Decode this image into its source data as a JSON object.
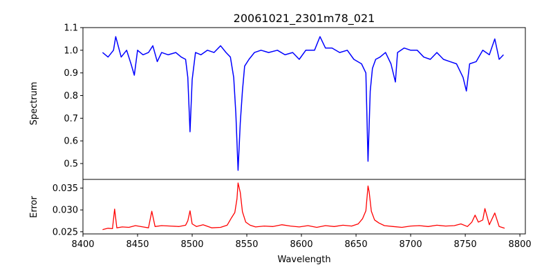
{
  "chart_data": [
    {
      "type": "line",
      "panel": "top",
      "title": "20061021_2301m78_021",
      "ylabel": "Spectrum",
      "xlabel": "",
      "xlim": [
        8400,
        8805
      ],
      "ylim": [
        0.43,
        1.1
      ],
      "yticks": [
        0.5,
        0.6,
        0.7,
        0.8,
        0.9,
        1.0,
        1.1
      ],
      "ytick_labels": [
        "0.5",
        "0.6",
        "0.7",
        "0.8",
        "0.9",
        "1.0",
        "1.1"
      ],
      "series": [
        {
          "color": "#0000ff",
          "x": [
            8418,
            8423,
            8428,
            8430,
            8435,
            8440,
            8444,
            8447,
            8450,
            8455,
            8460,
            8464,
            8468,
            8472,
            8478,
            8485,
            8490,
            8494,
            8496,
            8498,
            8500,
            8503,
            8508,
            8514,
            8520,
            8526,
            8531,
            8535,
            8538,
            8540,
            8542,
            8544,
            8546,
            8548,
            8552,
            8557,
            8563,
            8570,
            8578,
            8585,
            8592,
            8598,
            8604,
            8612,
            8617,
            8622,
            8628,
            8635,
            8642,
            8648,
            8655,
            8659,
            8661,
            8663,
            8665,
            8668,
            8672,
            8677,
            8682,
            8686,
            8688,
            8694,
            8700,
            8706,
            8712,
            8718,
            8724,
            8730,
            8736,
            8742,
            8748,
            8751,
            8754,
            8760,
            8766,
            8772,
            8777,
            8781,
            8785
          ],
          "y": [
            0.99,
            0.97,
            1.0,
            1.06,
            0.97,
            1.0,
            0.94,
            0.89,
            1.0,
            0.98,
            0.99,
            1.02,
            0.95,
            0.99,
            0.98,
            0.99,
            0.97,
            0.96,
            0.88,
            0.64,
            0.87,
            0.99,
            0.98,
            1.0,
            0.99,
            1.02,
            0.99,
            0.97,
            0.88,
            0.72,
            0.47,
            0.68,
            0.82,
            0.93,
            0.96,
            0.99,
            1.0,
            0.99,
            1.0,
            0.98,
            0.99,
            0.96,
            1.0,
            1.0,
            1.06,
            1.01,
            1.01,
            0.99,
            1.0,
            0.96,
            0.94,
            0.9,
            0.51,
            0.82,
            0.92,
            0.96,
            0.97,
            0.99,
            0.94,
            0.86,
            0.99,
            1.01,
            1.0,
            1.0,
            0.97,
            0.96,
            0.99,
            0.96,
            0.95,
            0.94,
            0.88,
            0.82,
            0.94,
            0.95,
            1.0,
            0.98,
            1.05,
            0.96,
            0.98
          ]
        }
      ]
    },
    {
      "type": "line",
      "panel": "bottom",
      "title": "",
      "ylabel": "Error",
      "xlabel": "Wavelength",
      "xlim": [
        8400,
        8805
      ],
      "ylim": [
        0.0245,
        0.037
      ],
      "xticks": [
        8400,
        8450,
        8500,
        8550,
        8600,
        8650,
        8700,
        8750,
        8800
      ],
      "xtick_labels": [
        "8400",
        "8450",
        "8500",
        "8550",
        "8600",
        "8650",
        "8700",
        "8750",
        "8800"
      ],
      "yticks": [
        0.025,
        0.03,
        0.035
      ],
      "ytick_labels": [
        "0.025",
        "0.030",
        "0.035"
      ],
      "series": [
        {
          "color": "#ff0000",
          "x": [
            8418,
            8423,
            8427,
            8429,
            8431,
            8436,
            8442,
            8448,
            8455,
            8460,
            8463,
            8466,
            8472,
            8480,
            8488,
            8494,
            8496,
            8498,
            8500,
            8504,
            8510,
            8518,
            8526,
            8532,
            8536,
            8539,
            8541,
            8542,
            8544,
            8546,
            8549,
            8553,
            8558,
            8566,
            8574,
            8582,
            8590,
            8598,
            8606,
            8614,
            8622,
            8630,
            8638,
            8646,
            8652,
            8656,
            8659,
            8661,
            8662,
            8664,
            8667,
            8671,
            8676,
            8684,
            8692,
            8700,
            8708,
            8716,
            8724,
            8732,
            8740,
            8746,
            8752,
            8756,
            8759,
            8762,
            8766,
            8768,
            8772,
            8777,
            8781,
            8786
          ],
          "y": [
            0.0255,
            0.0258,
            0.0257,
            0.0302,
            0.0259,
            0.0261,
            0.026,
            0.0264,
            0.0261,
            0.0259,
            0.0297,
            0.0262,
            0.0264,
            0.0263,
            0.0262,
            0.0265,
            0.0275,
            0.0298,
            0.0268,
            0.0262,
            0.0266,
            0.0259,
            0.026,
            0.0265,
            0.0282,
            0.0294,
            0.0325,
            0.0362,
            0.034,
            0.0296,
            0.0272,
            0.0265,
            0.0261,
            0.0263,
            0.0262,
            0.0266,
            0.0263,
            0.0261,
            0.0264,
            0.026,
            0.0264,
            0.0262,
            0.0265,
            0.0263,
            0.0268,
            0.028,
            0.0298,
            0.0355,
            0.0342,
            0.0297,
            0.0277,
            0.027,
            0.0264,
            0.0262,
            0.026,
            0.0263,
            0.0264,
            0.0262,
            0.0265,
            0.0263,
            0.0264,
            0.0268,
            0.0262,
            0.0272,
            0.0288,
            0.0272,
            0.0277,
            0.0303,
            0.0266,
            0.0293,
            0.0262,
            0.0258
          ]
        }
      ]
    }
  ]
}
